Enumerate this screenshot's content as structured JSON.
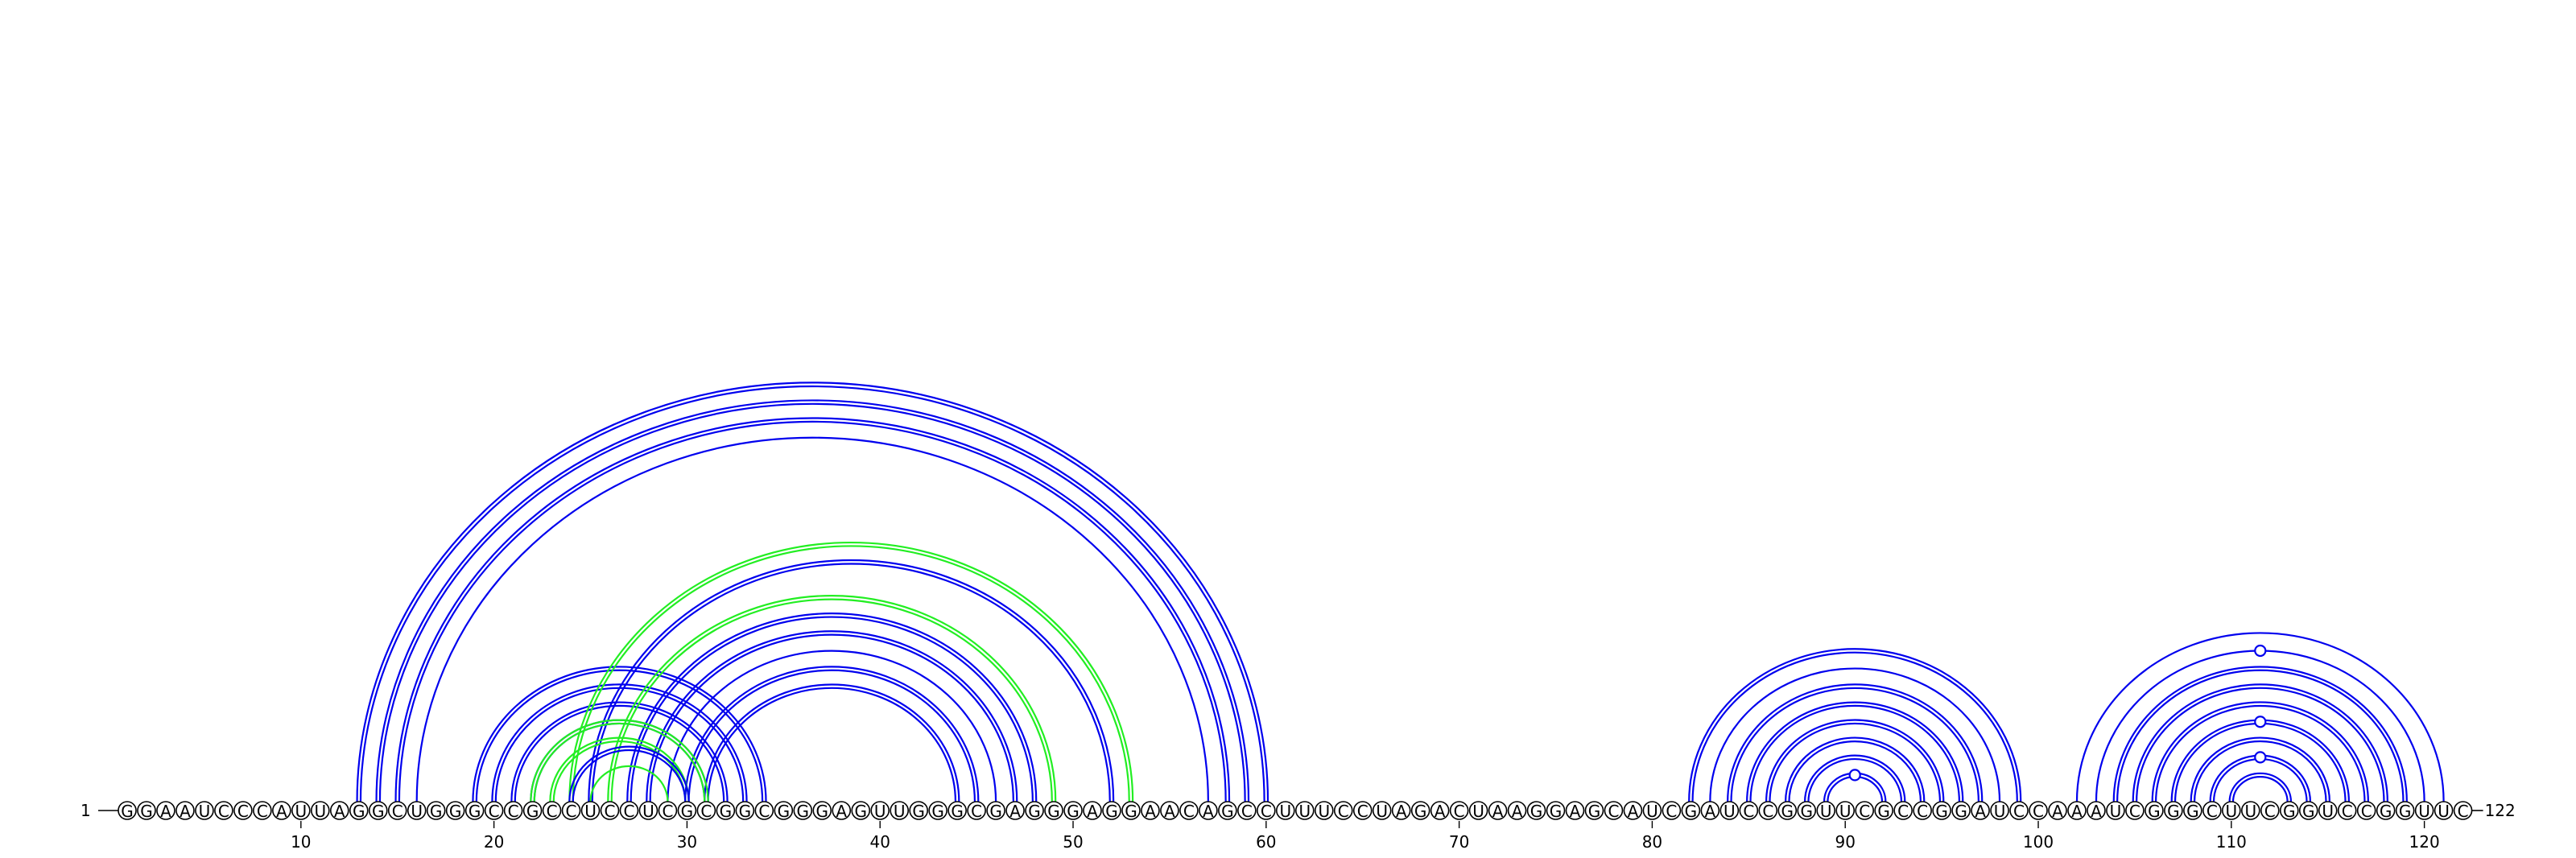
{
  "chart_data": {
    "type": "arc-diagram",
    "sequence": "GGAAUCCCAUUAGGCUGGGCCGCCUCCUCGCGGCGGGAGUUGGGCGAGGGAGGAACAGCCUUUCCUAGACUAAGGAGCAUCGAUCCGGUUCGCCGGAUCCAAAUCGGGCUUCGGUCCGGUUC",
    "start_label": "1",
    "end_label": "122",
    "ticks": [
      10,
      20,
      30,
      40,
      50,
      60,
      70,
      80,
      90,
      100,
      110,
      120
    ],
    "colors": {
      "primary": "#0000ee",
      "alternate": "#22ee22"
    },
    "pairs": [
      {
        "i": 13,
        "j": 60,
        "color": "primary",
        "double": true
      },
      {
        "i": 14,
        "j": 59,
        "color": "primary",
        "double": true
      },
      {
        "i": 15,
        "j": 58,
        "color": "primary",
        "double": true
      },
      {
        "i": 16,
        "j": 57,
        "color": "primary",
        "double": false
      },
      {
        "i": 19,
        "j": 34,
        "color": "primary",
        "double": true
      },
      {
        "i": 20,
        "j": 33,
        "color": "primary",
        "double": true
      },
      {
        "i": 21,
        "j": 32,
        "color": "primary",
        "double": true
      },
      {
        "i": 22,
        "j": 31,
        "color": "primary",
        "double": true
      },
      {
        "i": 24,
        "j": 53,
        "color": "alternate",
        "double": true
      },
      {
        "i": 25,
        "j": 52,
        "color": "primary",
        "double": true
      },
      {
        "i": 26,
        "j": 49,
        "color": "alternate",
        "double": true
      },
      {
        "i": 27,
        "j": 48,
        "color": "primary",
        "double": true
      },
      {
        "i": 28,
        "j": 47,
        "color": "primary",
        "double": true
      },
      {
        "i": 29,
        "j": 46,
        "color": "primary",
        "double": false
      },
      {
        "i": 30,
        "j": 45,
        "color": "primary",
        "double": true
      },
      {
        "i": 31,
        "j": 44,
        "color": "primary",
        "double": true
      },
      {
        "i": 22,
        "j": 31,
        "color": "alternate",
        "double": true
      },
      {
        "i": 23,
        "j": 30,
        "color": "alternate",
        "double": true
      },
      {
        "i": 24,
        "j": 30,
        "color": "primary",
        "double": true
      },
      {
        "i": 25,
        "j": 29,
        "color": "alternate",
        "double": false
      },
      {
        "i": 82,
        "j": 99,
        "color": "primary",
        "double": true
      },
      {
        "i": 83,
        "j": 98,
        "color": "primary",
        "double": false
      },
      {
        "i": 84,
        "j": 97,
        "color": "primary",
        "double": true
      },
      {
        "i": 85,
        "j": 96,
        "color": "primary",
        "double": true
      },
      {
        "i": 86,
        "j": 95,
        "color": "primary",
        "double": true
      },
      {
        "i": 87,
        "j": 94,
        "color": "primary",
        "double": true
      },
      {
        "i": 88,
        "j": 93,
        "color": "primary",
        "double": true
      },
      {
        "i": 89,
        "j": 92,
        "color": "primary",
        "double": true,
        "marker": true
      },
      {
        "i": 102,
        "j": 121,
        "color": "primary",
        "double": false
      },
      {
        "i": 103,
        "j": 120,
        "color": "primary",
        "double": false,
        "marker": true
      },
      {
        "i": 104,
        "j": 119,
        "color": "primary",
        "double": true
      },
      {
        "i": 105,
        "j": 118,
        "color": "primary",
        "double": true
      },
      {
        "i": 106,
        "j": 117,
        "color": "primary",
        "double": true
      },
      {
        "i": 107,
        "j": 116,
        "color": "primary",
        "double": true,
        "marker": true
      },
      {
        "i": 108,
        "j": 115,
        "color": "primary",
        "double": true
      },
      {
        "i": 109,
        "j": 114,
        "color": "primary",
        "double": true,
        "marker": true
      },
      {
        "i": 110,
        "j": 113,
        "color": "primary",
        "double": true
      }
    ]
  }
}
